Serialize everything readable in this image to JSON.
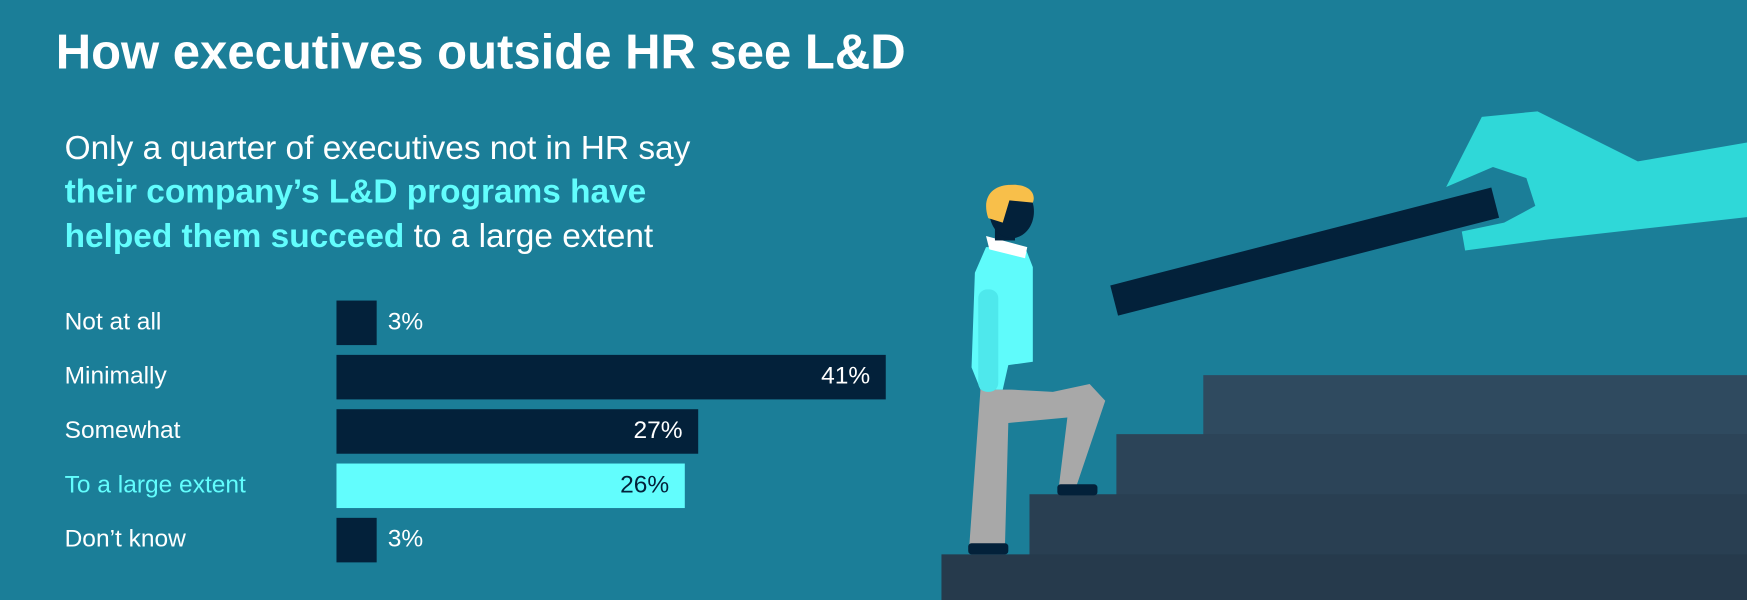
{
  "chart_data": {
    "type": "bar",
    "orientation": "horizontal",
    "title": "How executives outside HR see L&D",
    "subtitle": [
      "Only a quarter of executives not in HR say",
      "their company’s L&D programs have",
      "helped them succeed",
      "to a large extent"
    ],
    "categories": [
      "Not at all",
      "Minimally",
      "Somewhat",
      "To a large extent",
      "Don’t know"
    ],
    "values": [
      3,
      41,
      27,
      26,
      3
    ],
    "value_labels": [
      "3%",
      "41%",
      "27%",
      "26%",
      "3%"
    ],
    "colors": [
      "#03213a",
      "#03213a",
      "#03213a",
      "#62fdfd",
      "#03213a"
    ],
    "label_colors": [
      "#ffffff",
      "#ffffff",
      "#ffffff",
      "#62fdfd",
      "#ffffff"
    ]
  }
}
